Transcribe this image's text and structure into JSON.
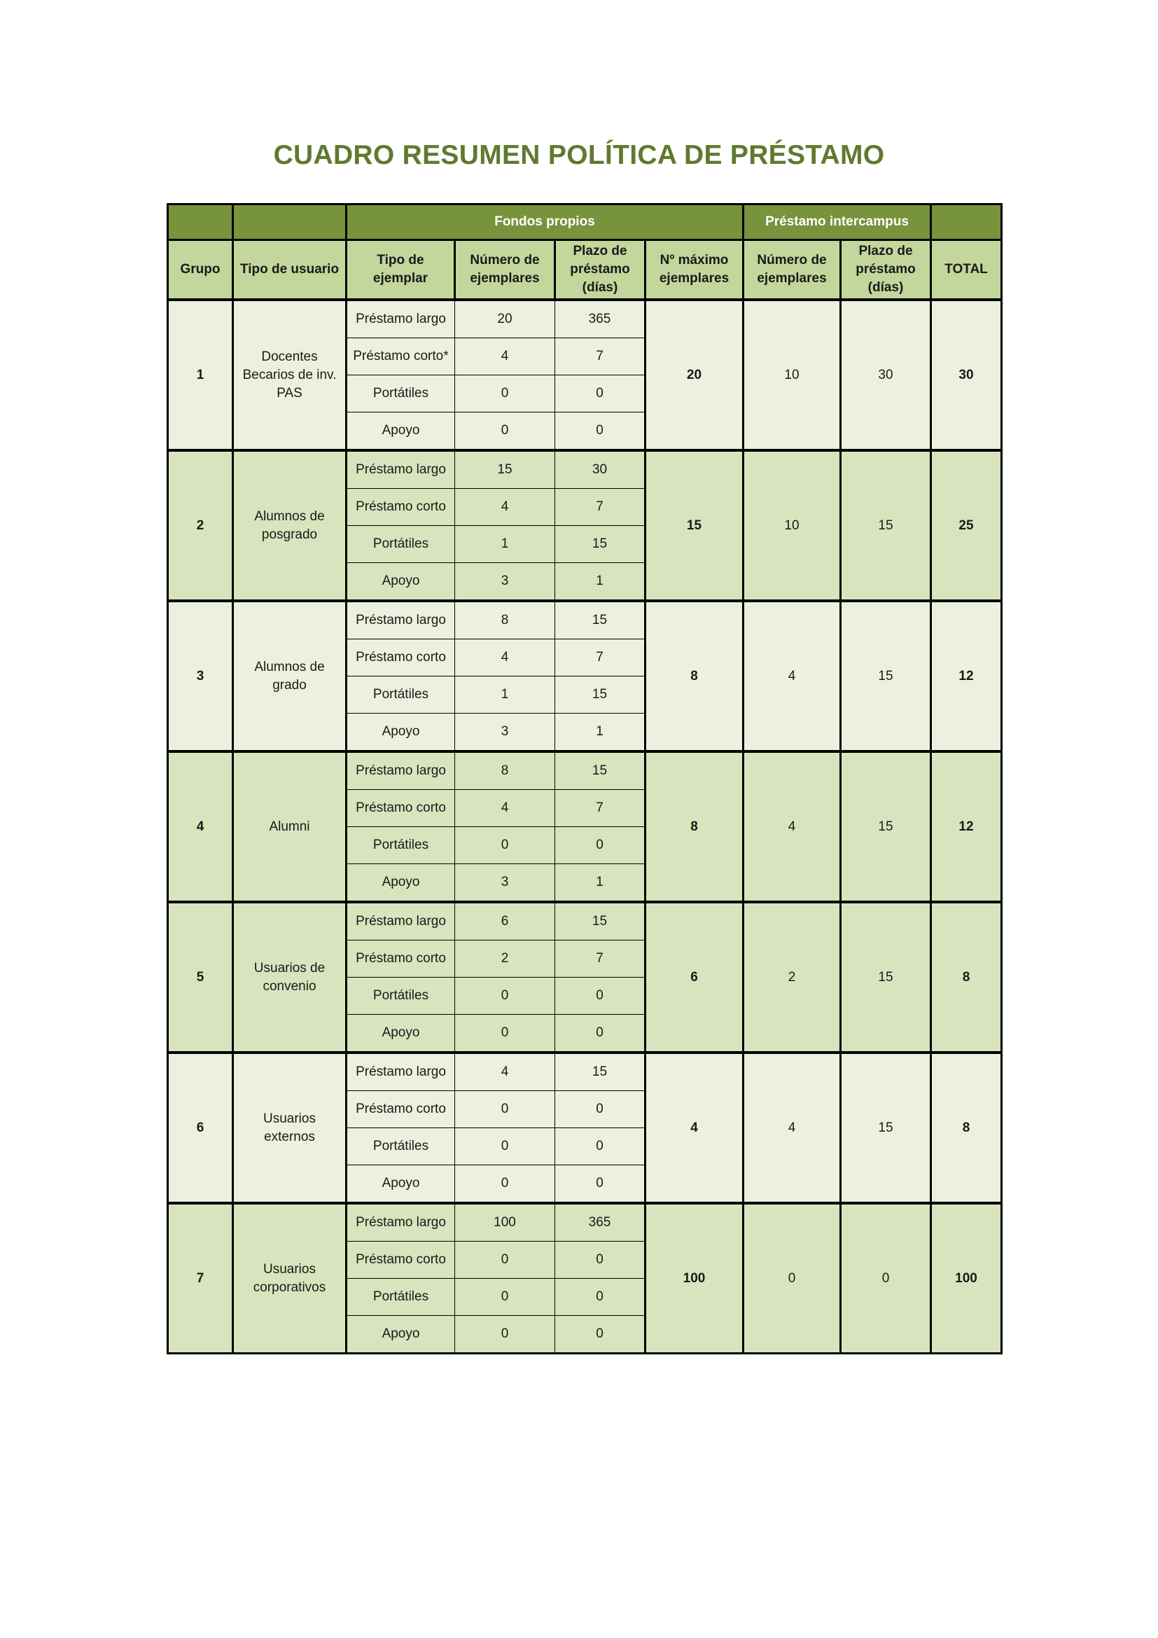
{
  "title": "CUADRO RESUMEN POLÍTICA DE PRÉSTAMO",
  "colors": {
    "title": "#5f7a2e",
    "header_dark": "#77933c",
    "header_light": "#c3d69b",
    "row_light": "#ebf1de",
    "row_dark": "#d7e4bd"
  },
  "header_groups": {
    "fondos": "Fondos propios",
    "intercampus": "Préstamo intercampus"
  },
  "columns": [
    "Grupo",
    "Tipo de usuario",
    "Tipo de ejemplar",
    "Número de ejemplares",
    "Plazo de préstamo (días)",
    "Nº máximo ejemplares",
    "Número de ejemplares",
    "Plazo de préstamo (días)",
    "TOTAL"
  ],
  "groups": [
    {
      "grupo": "1",
      "usuario": "Docentes\nBecarios de inv.\nPAS",
      "shade": "#ebf1de",
      "items": [
        [
          "Préstamo largo",
          "20",
          "365"
        ],
        [
          "Préstamo corto*",
          "4",
          "7"
        ],
        [
          "Portátiles",
          "0",
          "0"
        ],
        [
          "Apoyo",
          "0",
          "0"
        ]
      ],
      "max": "20",
      "ic_num": "10",
      "ic_plazo": "30",
      "total": "30"
    },
    {
      "grupo": "2",
      "usuario": "Alumnos de posgrado",
      "shade": "#d7e4bd",
      "items": [
        [
          "Préstamo largo",
          "15",
          "30"
        ],
        [
          "Préstamo corto",
          "4",
          "7"
        ],
        [
          "Portátiles",
          "1",
          "15"
        ],
        [
          "Apoyo",
          "3",
          "1"
        ]
      ],
      "max": "15",
      "ic_num": "10",
      "ic_plazo": "15",
      "total": "25"
    },
    {
      "grupo": "3",
      "usuario": "Alumnos de grado",
      "shade": "#ebf1de",
      "items": [
        [
          "Préstamo largo",
          "8",
          "15"
        ],
        [
          "Préstamo corto",
          "4",
          "7"
        ],
        [
          "Portátiles",
          "1",
          "15"
        ],
        [
          "Apoyo",
          "3",
          "1"
        ]
      ],
      "max": "8",
      "ic_num": "4",
      "ic_plazo": "15",
      "total": "12"
    },
    {
      "grupo": "4",
      "usuario": "Alumni",
      "shade": "#d7e4bd",
      "items": [
        [
          "Préstamo largo",
          "8",
          "15"
        ],
        [
          "Préstamo corto",
          "4",
          "7"
        ],
        [
          "Portátiles",
          "0",
          "0"
        ],
        [
          "Apoyo",
          "3",
          "1"
        ]
      ],
      "max": "8",
      "ic_num": "4",
      "ic_plazo": "15",
      "total": "12"
    },
    {
      "grupo": "5",
      "usuario": "Usuarios de convenio",
      "shade": "#d7e4bd",
      "items": [
        [
          "Préstamo largo",
          "6",
          "15"
        ],
        [
          "Préstamo corto",
          "2",
          "7"
        ],
        [
          "Portátiles",
          "0",
          "0"
        ],
        [
          "Apoyo",
          "0",
          "0"
        ]
      ],
      "max": "6",
      "ic_num": "2",
      "ic_plazo": "15",
      "total": "8"
    },
    {
      "grupo": "6",
      "usuario": "Usuarios externos",
      "shade": "#ebf1de",
      "items": [
        [
          "Préstamo largo",
          "4",
          "15"
        ],
        [
          "Préstamo corto",
          "0",
          "0"
        ],
        [
          "Portátiles",
          "0",
          "0"
        ],
        [
          "Apoyo",
          "0",
          "0"
        ]
      ],
      "max": "4",
      "ic_num": "4",
      "ic_plazo": "15",
      "total": "8"
    },
    {
      "grupo": "7",
      "usuario": "Usuarios corporativos",
      "shade": "#d7e4bd",
      "items": [
        [
          "Préstamo largo",
          "100",
          "365"
        ],
        [
          "Préstamo corto",
          "0",
          "0"
        ],
        [
          "Portátiles",
          "0",
          "0"
        ],
        [
          "Apoyo",
          "0",
          "0"
        ]
      ],
      "max": "100",
      "ic_num": "0",
      "ic_plazo": "0",
      "total": "100"
    }
  ]
}
